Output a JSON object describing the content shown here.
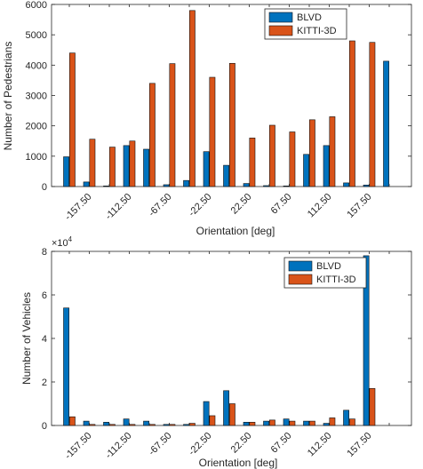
{
  "chart_data": [
    {
      "type": "bar",
      "xlabel": "Orientation [deg]",
      "ylabel": "Number of Pedestrians",
      "ylim": [
        0,
        6000
      ],
      "yticks": [
        0,
        1000,
        2000,
        3000,
        4000,
        5000,
        6000
      ],
      "yticklabels": [
        "0",
        "1000",
        "2000",
        "3000",
        "4000",
        "5000",
        "6000"
      ],
      "ytick_exponent": "",
      "x": [
        -180,
        -157.5,
        -135,
        -112.5,
        -90,
        -67.5,
        -45,
        -22.5,
        0,
        22.5,
        45,
        67.5,
        90,
        112.5,
        135,
        157.5,
        180
      ],
      "xlim": [
        -200,
        205
      ],
      "xtick_values": [
        -157.5,
        -112.5,
        -67.5,
        -22.5,
        22.5,
        67.5,
        112.5,
        157.5
      ],
      "xtick_labels": [
        "-157.50",
        "-112.50",
        "-67.50",
        "-22.50",
        "22.50",
        "67.50",
        "112.50",
        "157.50"
      ],
      "legend_position": "top-right",
      "grid": false,
      "series": [
        {
          "name": "BLVD",
          "color": "#0072BD",
          "values": [
            980,
            150,
            20,
            1350,
            1230,
            60,
            200,
            1150,
            700,
            100,
            30,
            20,
            1060,
            1350,
            120,
            50,
            4130
          ]
        },
        {
          "name": "KITTI-3D",
          "color": "#D95319",
          "values": [
            4400,
            1560,
            1300,
            1500,
            3400,
            4050,
            5800,
            3600,
            4060,
            1600,
            2020,
            1800,
            2200,
            2300,
            4800,
            4750,
            0
          ]
        }
      ]
    },
    {
      "type": "bar",
      "xlabel": "Orientation [deg]",
      "ylabel": "Number of Vehicles",
      "ylim": [
        0,
        8
      ],
      "yticks": [
        0,
        2,
        4,
        6,
        8
      ],
      "yticklabels": [
        "0",
        "2",
        "4",
        "6",
        "8"
      ],
      "ytick_exponent": "×10",
      "ytick_exponent_power": "4",
      "x": [
        -180,
        -157.5,
        -135,
        -112.5,
        -90,
        -67.5,
        -45,
        -22.5,
        0,
        22.5,
        45,
        67.5,
        90,
        112.5,
        135,
        157.5,
        180
      ],
      "xlim": [
        -200,
        205
      ],
      "xtick_values": [
        -157.5,
        -112.5,
        -67.5,
        -22.5,
        22.5,
        67.5,
        112.5,
        157.5
      ],
      "xtick_labels": [
        "-157.50",
        "-112.50",
        "-67.50",
        "-22.50",
        "22.50",
        "67.50",
        "112.50",
        "157.50"
      ],
      "legend_position": "top-right",
      "grid": false,
      "series": [
        {
          "name": "BLVD",
          "color": "#0072BD",
          "values": [
            5.4,
            0.2,
            0.15,
            0.3,
            0.2,
            0.05,
            0.05,
            1.1,
            1.6,
            0.15,
            0.2,
            0.3,
            0.2,
            0.1,
            0.7,
            7.8,
            0
          ]
        },
        {
          "name": "KITTI-3D",
          "color": "#D95319",
          "values": [
            0.4,
            0.05,
            0.05,
            0.05,
            0.05,
            0.05,
            0.1,
            0.45,
            1.0,
            0.15,
            0.25,
            0.2,
            0.2,
            0.35,
            0.3,
            1.7,
            0
          ]
        }
      ]
    }
  ]
}
